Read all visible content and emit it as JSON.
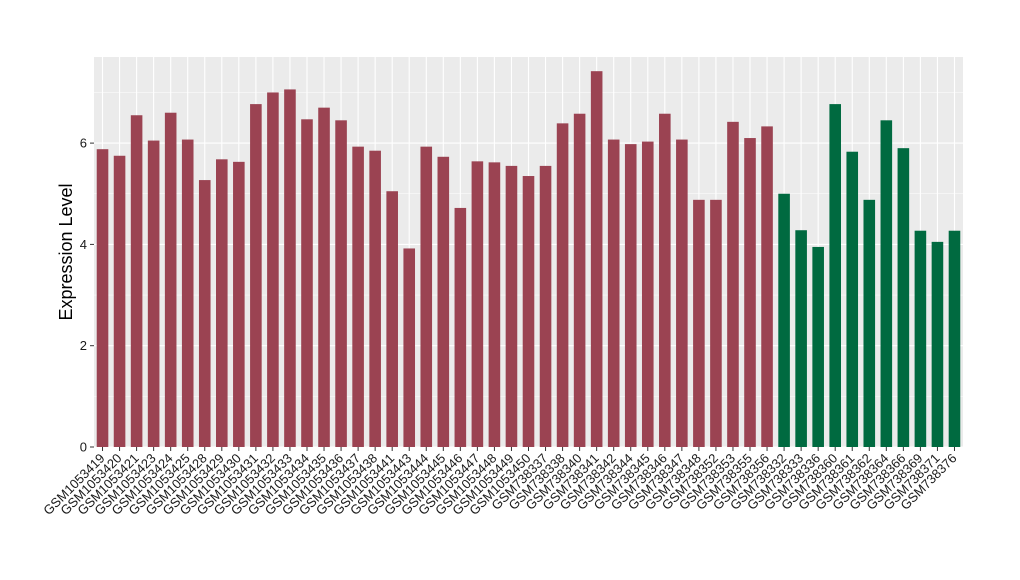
{
  "chart_data": {
    "type": "bar",
    "title": "",
    "xlabel": "",
    "ylabel": "Expression Level",
    "ylim": [
      0,
      7.7
    ],
    "yticks": [
      0,
      2,
      4,
      6
    ],
    "grid": true,
    "legend": "none",
    "colors": {
      "group1": "#9b4352",
      "group2": "#006a40",
      "panel_bg": "#ebebeb",
      "grid": "#ffffff"
    },
    "categories": [
      "GSM1053419",
      "GSM1053420",
      "GSM1053421",
      "GSM1053423",
      "GSM1053424",
      "GSM1053425",
      "GSM1053428",
      "GSM1053429",
      "GSM1053430",
      "GSM1053431",
      "GSM1053432",
      "GSM1053433",
      "GSM1053434",
      "GSM1053435",
      "GSM1053436",
      "GSM1053437",
      "GSM1053438",
      "GSM1053441",
      "GSM1053443",
      "GSM1053444",
      "GSM1053445",
      "GSM1053446",
      "GSM1053447",
      "GSM1053448",
      "GSM1053449",
      "GSM1053450",
      "GSM738337",
      "GSM738338",
      "GSM738340",
      "GSM738341",
      "GSM738342",
      "GSM738344",
      "GSM738345",
      "GSM738346",
      "GSM738347",
      "GSM738348",
      "GSM738352",
      "GSM738353",
      "GSM738355",
      "GSM738356",
      "GSM738332",
      "GSM738333",
      "GSM738336",
      "GSM738360",
      "GSM738361",
      "GSM738362",
      "GSM738364",
      "GSM738366",
      "GSM738369",
      "GSM738371",
      "GSM738376"
    ],
    "values": [
      5.88,
      5.75,
      6.55,
      6.05,
      6.6,
      6.07,
      5.27,
      5.68,
      5.63,
      6.77,
      7.0,
      7.06,
      6.47,
      6.7,
      6.45,
      5.93,
      5.85,
      5.05,
      3.92,
      5.93,
      5.73,
      4.72,
      5.64,
      5.62,
      5.55,
      5.35,
      5.55,
      6.39,
      6.58,
      7.42,
      6.07,
      5.98,
      6.03,
      6.58,
      6.07,
      4.88,
      4.88,
      6.42,
      6.1,
      6.33,
      5.0,
      4.28,
      3.95,
      6.77,
      5.83,
      4.88,
      6.45,
      5.9,
      4.27,
      4.05,
      4.27
    ],
    "groups": [
      1,
      1,
      1,
      1,
      1,
      1,
      1,
      1,
      1,
      1,
      1,
      1,
      1,
      1,
      1,
      1,
      1,
      1,
      1,
      1,
      1,
      1,
      1,
      1,
      1,
      1,
      1,
      1,
      1,
      1,
      1,
      1,
      1,
      1,
      1,
      1,
      1,
      1,
      1,
      1,
      2,
      2,
      2,
      2,
      2,
      2,
      2,
      2,
      2,
      2,
      2
    ]
  }
}
